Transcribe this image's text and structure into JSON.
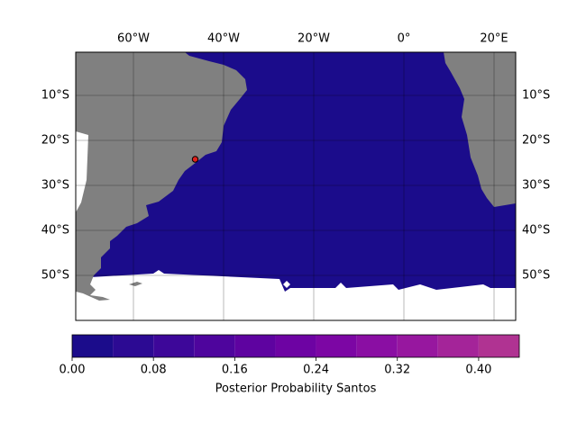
{
  "chart_data": {
    "type": "map",
    "xlim": [
      -72.8,
      24.8
    ],
    "ylim": [
      -60,
      -0.4
    ],
    "xticks": [
      {
        "value": -60,
        "label": "60°W"
      },
      {
        "value": -40,
        "label": "40°W"
      },
      {
        "value": -20,
        "label": "20°W"
      },
      {
        "value": 0,
        "label": "0°"
      },
      {
        "value": 20,
        "label": "20°E"
      }
    ],
    "yticks": [
      {
        "value": -10,
        "label": "10°S"
      },
      {
        "value": -20,
        "label": "20°S"
      },
      {
        "value": -30,
        "label": "30°S"
      },
      {
        "value": -40,
        "label": "40°S"
      },
      {
        "value": -50,
        "label": "50°S"
      }
    ],
    "grid": true,
    "marker": {
      "lon": -46.3,
      "lat": -24.2,
      "color": "#e0201b"
    },
    "colorbar": {
      "label": "Posterior Probability Santos",
      "bounds": [
        0,
        0.04,
        0.08,
        0.12,
        0.16,
        0.2,
        0.24,
        0.28,
        0.32,
        0.36,
        0.4,
        0.44
      ],
      "colors": [
        "#1b0c8b",
        "#2c0a93",
        "#3d0799",
        "#4e059d",
        "#5e03a0",
        "#6d03a3",
        "#7c06a4",
        "#8a0ea3",
        "#97179f",
        "#a42499",
        "#b03392"
      ],
      "ticks": [
        {
          "value": 0,
          "label": "0.00"
        },
        {
          "value": 0.08,
          "label": "0.08"
        },
        {
          "value": 0.16,
          "label": "0.16"
        },
        {
          "value": 0.24,
          "label": "0.24"
        },
        {
          "value": 0.32,
          "label": "0.32"
        },
        {
          "value": 0.4,
          "label": "0.40"
        }
      ]
    }
  }
}
